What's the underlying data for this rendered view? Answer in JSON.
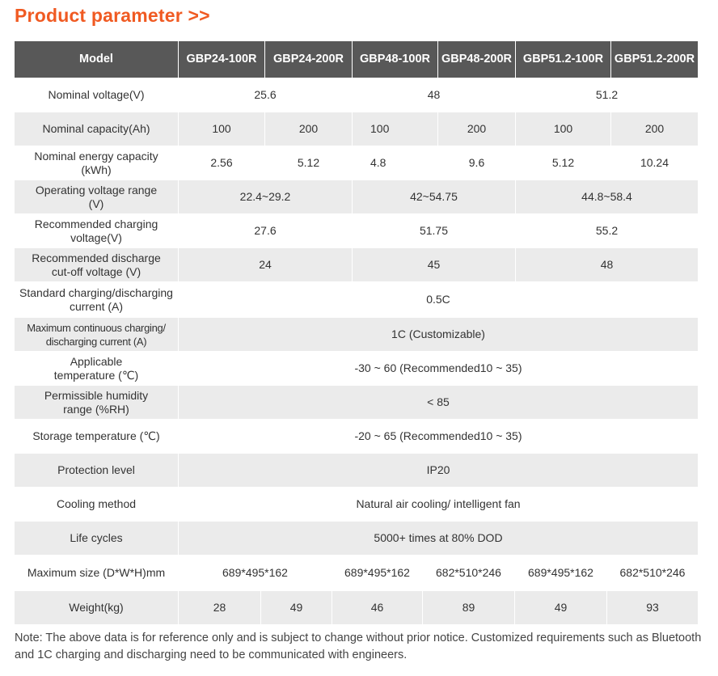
{
  "title": "Product parameter >>",
  "header": {
    "model_label": "Model",
    "models": [
      "GBP24-100R",
      "GBP24-200R",
      "GBP48-100R",
      "GBP48-200R",
      "GBP51.2-100R",
      "GBP51.2-200R"
    ]
  },
  "rows": {
    "nominal_voltage": {
      "label": "Nominal voltage(V)",
      "values": [
        "25.6",
        "48",
        "51.2"
      ]
    },
    "nominal_capacity": {
      "label": "Nominal capacity(Ah)",
      "values": [
        "100",
        "200",
        "100",
        "200",
        "100",
        "200"
      ]
    },
    "nominal_energy": {
      "label_1": "Nominal energy capacity",
      "label_2": "(kWh)",
      "values": [
        "2.56",
        "5.12",
        "4.8",
        "9.6",
        "5.12",
        "10.24"
      ]
    },
    "operating_voltage": {
      "label_1": "Operating voltage range",
      "label_2": "(V)",
      "values": [
        "22.4~29.2",
        "42~54.75",
        "44.8~58.4"
      ]
    },
    "charging_voltage": {
      "label_1": "Recommended charging",
      "label_2": "voltage(V)",
      "values": [
        "27.6",
        "51.75",
        "55.2"
      ]
    },
    "discharge_cutoff": {
      "label_1": "Recommended discharge",
      "label_2": "cut-off voltage (V)",
      "values": [
        "24",
        "45",
        "48"
      ]
    },
    "standard_current": {
      "label_1": "Standard charging/discharging",
      "label_2": "current (A)",
      "value": "0.5C"
    },
    "max_current": {
      "label_1": "Maximum continuous charging/",
      "label_2": "discharging current (A)",
      "value": "1C (Customizable)"
    },
    "applicable_temp": {
      "label_1": "Applicable",
      "label_2": "temperature (℃)",
      "value": "-30 ~ 60 (Recommended10 ~ 35)"
    },
    "humidity": {
      "label_1": "Permissible humidity",
      "label_2": "range (%RH)",
      "value": "< 85"
    },
    "storage_temp": {
      "label": "Storage temperature (℃)",
      "value": "-20 ~ 65 (Recommended10 ~ 35)"
    },
    "protection": {
      "label": "Protection level",
      "value": "IP20"
    },
    "cooling": {
      "label": "Cooling method",
      "value": "Natural air cooling/ intelligent fan"
    },
    "life_cycles": {
      "label": "Life cycles",
      "value": "5000+ times at 80% DOD"
    },
    "max_size": {
      "label": "Maximum size (D*W*H)mm",
      "values": [
        "689*495*162",
        "689*495*162",
        "682*510*246",
        "689*495*162",
        "682*510*246"
      ]
    },
    "weight": {
      "label": "Weight(kg)",
      "values": [
        "28",
        "49",
        "46",
        "89",
        "49",
        "93"
      ]
    }
  },
  "note": "Note: The above data is for reference only and is subject to change without prior notice. Customized requirements such as Bluetooth and 1C charging and discharging need to be communicated with engineers.",
  "colors": {
    "title": "#f05a22",
    "header_bg": "#585858",
    "row_shade": "#ebebeb"
  }
}
